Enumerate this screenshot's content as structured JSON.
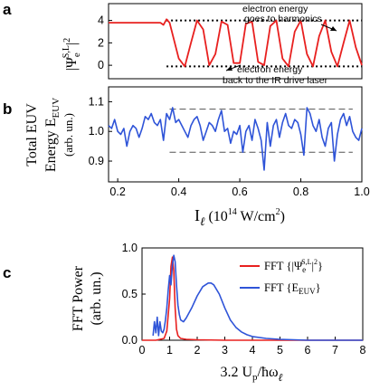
{
  "colors": {
    "red": "#e8201f",
    "blue": "#2f54d8",
    "black": "#000000",
    "gray": "#555555"
  },
  "panels": [
    {
      "id": "a",
      "label": "a",
      "ylabel_main": "|Ψ",
      "ylabel_sub": "e",
      "ylabel_sup": "S,L",
      "ylabel_end": "|",
      "ylabel_exp": "2",
      "annotation_top": [
        "electron energy",
        "goes to harmonics"
      ],
      "annotation_bottom": [
        "electron energy",
        "back to the IR drive laser"
      ]
    },
    {
      "id": "b",
      "label": "b",
      "ylabel_line1": "Total EUV",
      "ylabel_line2_main": "Energy E",
      "ylabel_line2_sub": "EUV",
      "ylabel_line3": "(arb. un.)",
      "xlabel_main": "I",
      "xlabel_sub": "ℓ",
      "xlabel_rest": " (10",
      "xlabel_exp": "14",
      "xlabel_end": " W/cm",
      "xlabel_exp2": "2",
      "xlabel_close": ")"
    },
    {
      "id": "c",
      "label": "c",
      "ylabel_line1": "FFT Power",
      "ylabel_line2": "(arb. un.)",
      "xlabel_main": "3.2 U",
      "xlabel_sub1": "p",
      "xlabel_mid": "/ħω",
      "xlabel_sub2": "ℓ",
      "legend": [
        {
          "prefix": "FFT {|Ψ",
          "sub": "e",
          "sup": "S,L",
          "suffix": "|",
          "exp": "2",
          "close": "}"
        },
        {
          "prefix": "FFT {E",
          "sub": "EUV",
          "suffix": "}"
        }
      ]
    }
  ],
  "chart_data": [
    {
      "type": "line",
      "panel": "a",
      "xlim": [
        0.17,
        1.0
      ],
      "ylim": [
        -1.2,
        5.5
      ],
      "yticks": [
        0,
        2,
        4
      ],
      "ytick_labels": [
        "0",
        "2",
        "4"
      ],
      "hlines": [
        4.0,
        -0.1
      ],
      "series": [
        {
          "x": [
            0.17,
            0.2,
            0.25,
            0.3,
            0.34,
            0.35,
            0.36,
            0.37,
            0.4,
            0.42,
            0.44,
            0.46,
            0.48,
            0.5,
            0.52,
            0.54,
            0.56,
            0.58,
            0.6,
            0.62,
            0.64,
            0.66,
            0.68,
            0.7,
            0.72,
            0.74,
            0.76,
            0.78,
            0.8,
            0.82,
            0.84,
            0.86,
            0.88,
            0.9,
            0.92,
            0.94,
            0.96,
            0.98,
            1.0
          ],
          "y": [
            3.8,
            3.8,
            3.8,
            3.8,
            3.8,
            3.6,
            4.1,
            3.8,
            0.6,
            -0.1,
            2.0,
            4.0,
            3.2,
            0.0,
            1.0,
            3.9,
            3.6,
            0.2,
            0.2,
            3.7,
            3.9,
            0.3,
            0.0,
            3.5,
            4.0,
            0.6,
            -0.1,
            3.0,
            4.0,
            1.0,
            -0.1,
            2.6,
            4.0,
            1.2,
            -0.1,
            2.0,
            4.0,
            1.6,
            0.0
          ]
        }
      ]
    },
    {
      "type": "line",
      "panel": "b",
      "xlim": [
        0.17,
        1.0
      ],
      "ylim": [
        0.83,
        1.15
      ],
      "yticks": [
        0.9,
        1.0,
        1.1
      ],
      "ytick_labels": [
        "0.9",
        "1.0",
        "1.1"
      ],
      "xticks": [
        0.2,
        0.4,
        0.6,
        0.8,
        1.0
      ],
      "xtick_labels": [
        "0.2",
        "0.4",
        "0.6",
        "0.8",
        "1.0"
      ],
      "hlines": [
        1.075,
        0.93
      ],
      "series": [
        {
          "x": [
            0.17,
            0.18,
            0.19,
            0.2,
            0.21,
            0.22,
            0.23,
            0.24,
            0.25,
            0.26,
            0.27,
            0.28,
            0.29,
            0.3,
            0.31,
            0.32,
            0.33,
            0.34,
            0.35,
            0.36,
            0.37,
            0.38,
            0.39,
            0.4,
            0.41,
            0.42,
            0.43,
            0.44,
            0.45,
            0.46,
            0.47,
            0.48,
            0.49,
            0.5,
            0.51,
            0.52,
            0.53,
            0.54,
            0.55,
            0.56,
            0.57,
            0.58,
            0.59,
            0.6,
            0.61,
            0.62,
            0.63,
            0.64,
            0.65,
            0.66,
            0.67,
            0.68,
            0.69,
            0.7,
            0.71,
            0.72,
            0.73,
            0.74,
            0.75,
            0.76,
            0.77,
            0.78,
            0.79,
            0.8,
            0.81,
            0.82,
            0.83,
            0.84,
            0.85,
            0.86,
            0.87,
            0.88,
            0.89,
            0.9,
            0.91,
            0.92,
            0.93,
            0.94,
            0.95,
            0.96,
            0.97,
            0.98,
            0.99,
            1.0
          ],
          "y": [
            1.02,
            1.01,
            1.04,
            1.0,
            0.99,
            1.01,
            0.95,
            1.0,
            1.02,
            1.01,
            0.98,
            1.01,
            1.05,
            1.04,
            1.06,
            1.03,
            1.02,
            1.04,
            0.97,
            1.06,
            1.04,
            1.08,
            1.03,
            1.04,
            1.02,
            1.0,
            0.98,
            1.02,
            1.04,
            1.05,
            1.02,
            0.97,
            1.0,
            1.03,
            1.02,
            1.0,
            1.04,
            1.07,
            1.0,
            1.01,
            0.96,
            1.0,
            0.99,
            1.02,
            0.93,
            1.0,
            1.02,
            0.97,
            1.04,
            1.01,
            0.97,
            0.87,
            1.03,
            0.95,
            1.02,
            1.04,
            0.98,
            1.03,
            1.06,
            1.02,
            1.01,
            1.04,
            1.03,
            0.99,
            0.92,
            1.08,
            1.06,
            1.02,
            1.0,
            1.04,
            0.98,
            0.95,
            1.01,
            1.03,
            0.9,
            0.99,
            1.04,
            1.06,
            1.02,
            1.05,
            1.0,
            0.98,
            0.97,
            1.01
          ]
        }
      ]
    },
    {
      "type": "line",
      "panel": "c",
      "xlim": [
        0,
        8
      ],
      "ylim": [
        0,
        1.0
      ],
      "yticks": [
        0.0,
        0.5,
        1.0
      ],
      "ytick_labels": [
        "0.0",
        "0.5",
        "1.0"
      ],
      "xticks": [
        0,
        1,
        2,
        3,
        4,
        5,
        6,
        7,
        8
      ],
      "xtick_labels": [
        "0",
        "1",
        "2",
        "3",
        "4",
        "5",
        "6",
        "7",
        "8"
      ],
      "series": [
        {
          "legend_index": 0,
          "x": [
            0.0,
            0.5,
            0.8,
            0.9,
            1.0,
            1.05,
            1.1,
            1.15,
            1.2,
            1.25,
            1.3,
            1.4,
            1.6,
            2.0,
            3.0,
            4.0,
            5.0,
            6.0,
            7.0,
            8.0
          ],
          "y": [
            0.0,
            0.0,
            0.02,
            0.1,
            0.45,
            0.8,
            0.9,
            0.75,
            0.35,
            0.12,
            0.05,
            0.02,
            0.01,
            0.005,
            0.0,
            0.0,
            0.0,
            0.0,
            0.0,
            0.0
          ]
        },
        {
          "legend_index": 1,
          "x": [
            0.4,
            0.45,
            0.5,
            0.55,
            0.6,
            0.65,
            0.7,
            0.75,
            0.8,
            0.85,
            0.9,
            0.95,
            1.0,
            1.05,
            1.1,
            1.15,
            1.2,
            1.25,
            1.3,
            1.35,
            1.4,
            1.5,
            1.6,
            1.8,
            2.0,
            2.2,
            2.4,
            2.5,
            2.6,
            2.8,
            3.0,
            3.2,
            3.4,
            3.6,
            3.8,
            4.0,
            4.5,
            5.0,
            5.5,
            6.0,
            6.5,
            7.0,
            7.5,
            8.0
          ],
          "y": [
            0.05,
            0.2,
            0.08,
            0.25,
            0.05,
            0.2,
            0.1,
            0.08,
            0.12,
            0.22,
            0.35,
            0.55,
            0.7,
            0.6,
            0.82,
            0.92,
            0.85,
            0.6,
            0.38,
            0.28,
            0.22,
            0.2,
            0.24,
            0.35,
            0.48,
            0.58,
            0.62,
            0.62,
            0.6,
            0.5,
            0.35,
            0.22,
            0.14,
            0.09,
            0.06,
            0.04,
            0.02,
            0.01,
            0.005,
            0.0,
            0.0,
            0.0,
            0.0,
            0.0
          ]
        }
      ]
    }
  ]
}
